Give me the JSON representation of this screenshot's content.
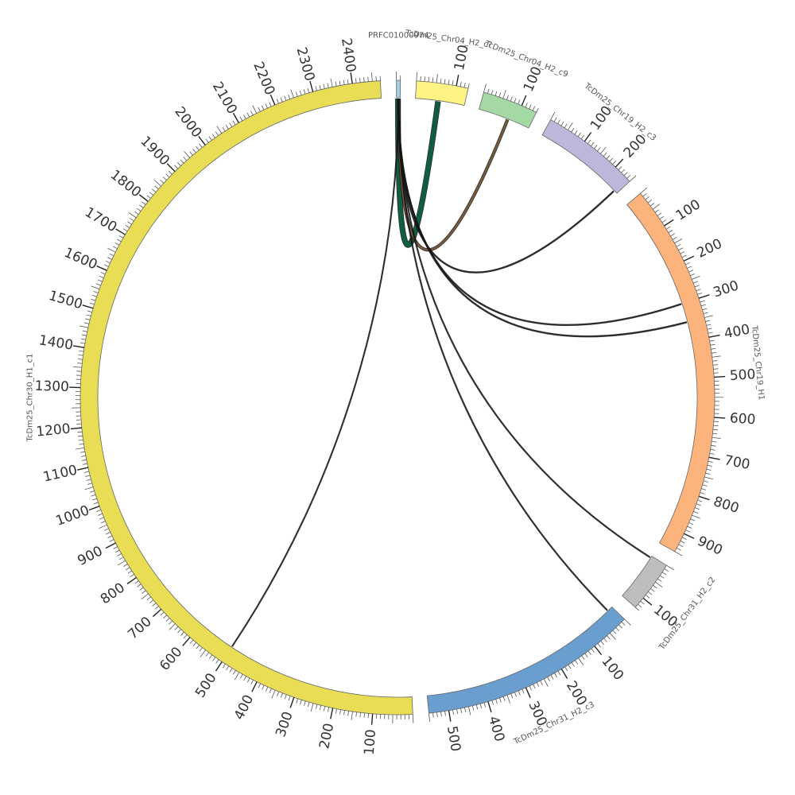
{
  "figure": {
    "type": "circos",
    "segments": [
      {
        "id": "prfc",
        "name": "PRFC01000974",
        "length": 10,
        "color": "#a6cee3",
        "labeled_ticks": []
      },
      {
        "id": "chr04_c?",
        "name": "TcDm25_Chr04_H2_c?",
        "length": 130,
        "color": "#fff385",
        "labeled_ticks": [
          100
        ]
      },
      {
        "id": "chr04_c9",
        "name": "TcDm25_Chr04_H2_c9",
        "length": 140,
        "color": "#a5d9a3",
        "labeled_ticks": [
          100
        ]
      },
      {
        "id": "chr19_c3",
        "name": "TcDm25_Chr19_H2_c3",
        "length": 250,
        "color": "#bcb8dc",
        "labeled_ticks": [
          100,
          200
        ]
      },
      {
        "id": "chr19_h1",
        "name": "TcDm25_Chr19_H1",
        "length": 950,
        "color": "#fdb37c",
        "labeled_ticks": [
          100,
          200,
          300,
          400,
          500,
          600,
          700,
          800,
          900
        ]
      },
      {
        "id": "chr31_c2",
        "name": "TcDm25_Chr31_H2_c2",
        "length": 130,
        "color": "#bdbdbd",
        "labeled_ticks": [
          100
        ]
      },
      {
        "id": "chr31_c3",
        "name": "TcDm25_Chr31_H2_c3",
        "length": 550,
        "color": "#6a9ece",
        "labeled_ticks": [
          100,
          200,
          300,
          400,
          500
        ]
      },
      {
        "id": "chr30_c1",
        "name": "TcDm25_Chr30_H1_c1",
        "length": 2470,
        "color": "#e8dd55",
        "labeled_ticks": [
          100,
          200,
          300,
          400,
          500,
          600,
          700,
          800,
          900,
          1000,
          1100,
          1200,
          1300,
          1400,
          1500,
          1600,
          1700,
          1800,
          1900,
          2000,
          2100,
          2200,
          2300,
          2400
        ]
      }
    ],
    "links": [
      {
        "from": "prfc",
        "from_pos": 4,
        "to": "chr04_c?",
        "to_pos": 60,
        "color": "#0f5e3f",
        "width": 6
      },
      {
        "from": "prfc",
        "from_pos": 6,
        "to": "chr04_c9",
        "to_pos": 80,
        "color": "#7a5a3a",
        "width": 3
      },
      {
        "from": "prfc",
        "from_pos": 5,
        "to": "chr19_c3",
        "to_pos": 240,
        "color": "#222222",
        "width": 1.2
      },
      {
        "from": "prfc",
        "from_pos": 5,
        "to": "chr19_h1",
        "to_pos": 300,
        "color": "#222222",
        "width": 1.2
      },
      {
        "from": "prfc",
        "from_pos": 5,
        "to": "chr19_h1",
        "to_pos": 350,
        "color": "#222222",
        "width": 1.2
      },
      {
        "from": "prfc",
        "from_pos": 5,
        "to": "chr31_c2",
        "to_pos": 5,
        "color": "#222222",
        "width": 1
      },
      {
        "from": "prfc",
        "from_pos": 5,
        "to": "chr31_c3",
        "to_pos": 15,
        "color": "#222222",
        "width": 1
      },
      {
        "from": "prfc",
        "from_pos": 5,
        "to": "chr30_c1",
        "to_pos": 500,
        "color": "#222222",
        "width": 0.9
      }
    ]
  }
}
